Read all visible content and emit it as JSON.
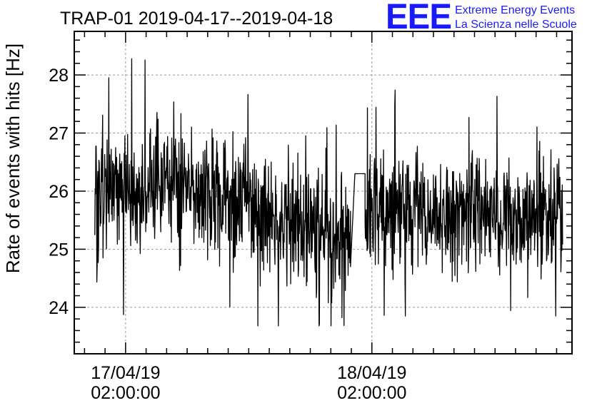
{
  "header": {
    "title": "TRAP-01 2019-04-17--2019-04-18",
    "logo_mark": "EEE",
    "logo_line1": "Extreme Energy Events",
    "logo_line2": "La Scienza nelle Scuole"
  },
  "colors": {
    "logo": "#1a1aff",
    "series": "#000000",
    "grid": "#9a9a9a"
  },
  "chart_data": {
    "type": "line",
    "title": "TRAP-01 2019-04-17--2019-04-18",
    "xlabel": "",
    "ylabel": "Rate of events with hits [Hz]",
    "ylim": [
      23.2,
      28.75
    ],
    "xlim": [
      "2019-04-16T21:00:00",
      "2019-04-18T21:30:00"
    ],
    "grid": true,
    "yticks": [
      24,
      25,
      26,
      27,
      28
    ],
    "xticks": [
      {
        "x": "2019-04-17T02:00:00",
        "label_date": "17/04/19",
        "label_time": "02:00:00"
      },
      {
        "x": "2019-04-18T02:00:00",
        "label_date": "18/04/19",
        "label_time": "02:00:00"
      }
    ],
    "series": [
      {
        "sample_minutes": 2,
        "segments": [
          {
            "start": "2019-04-16T23:00:00",
            "end": "2019-04-17T23:55:00",
            "mean_start": 26.05,
            "mean_peak": 26.15,
            "mean_end": 25.15,
            "spread": 0.55,
            "min": 23.68,
            "max": 28.28
          },
          {
            "start": "2019-04-17T23:55:00",
            "end": "2019-04-18T01:20:00",
            "mean_start": 24.7,
            "mean_peak": 26.3,
            "mean_end": 26.3,
            "spread": 0,
            "min": 24.7,
            "max": 26.3
          },
          {
            "start": "2019-04-18T01:20:00",
            "end": "2019-04-18T20:35:00",
            "mean_start": 25.7,
            "mean_peak": 25.65,
            "mean_end": 25.5,
            "spread": 0.5,
            "min": 23.85,
            "max": 27.95
          }
        ]
      }
    ]
  }
}
